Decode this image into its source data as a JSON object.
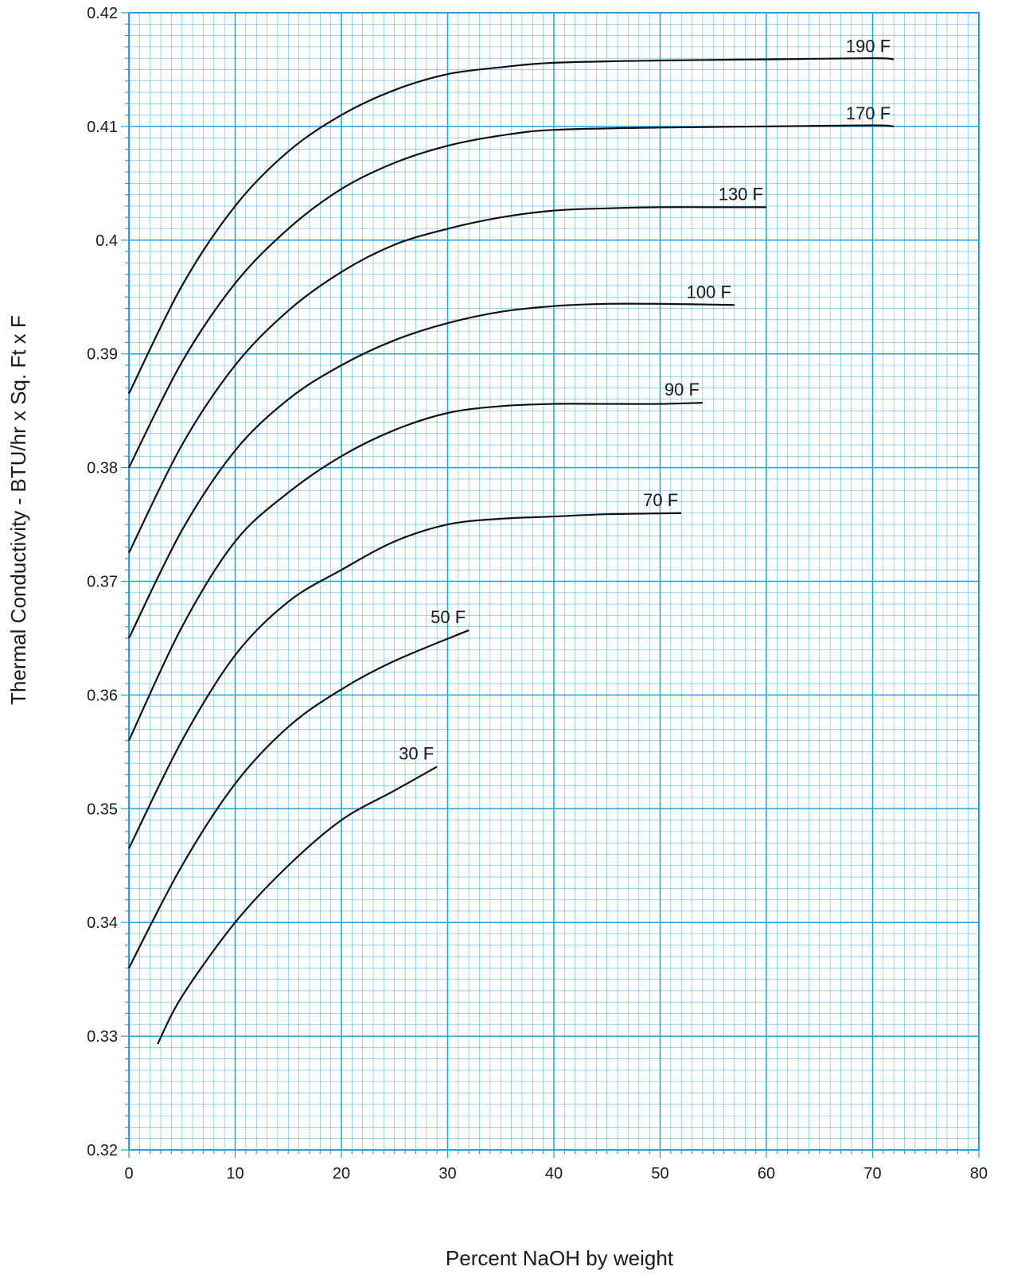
{
  "chart_data": {
    "type": "line",
    "title": "",
    "xlabel": "Percent NaOH by weight",
    "ylabel": "Thermal Conductivity - BTU/hr x Sq. Ft x F",
    "xlim": [
      0,
      80
    ],
    "ylim": [
      0.32,
      0.42
    ],
    "x_ticks": [
      "0",
      "10",
      "20",
      "30",
      "40",
      "50",
      "60",
      "70",
      "80"
    ],
    "y_ticks": [
      "0.32",
      "0.33",
      "0.34",
      "0.35",
      "0.36",
      "0.37",
      "0.38",
      "0.39",
      "0.4",
      "0.41",
      "0.42"
    ],
    "grid": true,
    "grid_color": "#1fa3e0",
    "line_color": "#111111",
    "series": [
      {
        "name": "190 F",
        "x": [
          0,
          5,
          10,
          15,
          20,
          25,
          30,
          35,
          40,
          50,
          60,
          70,
          72
        ],
        "values": [
          0.3865,
          0.396,
          0.403,
          0.4078,
          0.411,
          0.4132,
          0.4146,
          0.4152,
          0.4156,
          0.4158,
          0.4159,
          0.416,
          0.4159
        ]
      },
      {
        "name": "170 F",
        "x": [
          0,
          5,
          10,
          15,
          20,
          25,
          30,
          35,
          40,
          50,
          60,
          70,
          72
        ],
        "values": [
          0.38,
          0.3893,
          0.3962,
          0.401,
          0.4045,
          0.4068,
          0.4083,
          0.4092,
          0.4097,
          0.4099,
          0.41,
          0.4101,
          0.41
        ]
      },
      {
        "name": "130 F",
        "x": [
          0,
          5,
          10,
          15,
          20,
          25,
          30,
          35,
          40,
          45,
          50,
          55,
          60
        ],
        "values": [
          0.3725,
          0.382,
          0.389,
          0.3938,
          0.3972,
          0.3996,
          0.401,
          0.402,
          0.4026,
          0.4028,
          0.4029,
          0.4029,
          0.4029
        ]
      },
      {
        "name": "100 F",
        "x": [
          0,
          5,
          10,
          15,
          20,
          25,
          30,
          35,
          40,
          45,
          50,
          57
        ],
        "values": [
          0.365,
          0.3745,
          0.3815,
          0.386,
          0.389,
          0.3912,
          0.3927,
          0.3937,
          0.3942,
          0.3944,
          0.3944,
          0.3943
        ]
      },
      {
        "name": "90 F",
        "x": [
          0,
          5,
          10,
          15,
          20,
          25,
          30,
          35,
          40,
          45,
          50,
          54
        ],
        "values": [
          0.356,
          0.366,
          0.3735,
          0.3778,
          0.381,
          0.3833,
          0.3848,
          0.3854,
          0.3856,
          0.3856,
          0.3856,
          0.3857
        ]
      },
      {
        "name": "70 F",
        "x": [
          0,
          5,
          10,
          15,
          20,
          25,
          30,
          35,
          40,
          45,
          52
        ],
        "values": [
          0.3465,
          0.356,
          0.3635,
          0.3682,
          0.371,
          0.3735,
          0.375,
          0.3755,
          0.3757,
          0.3759,
          0.376
        ]
      },
      {
        "name": "50 F",
        "x": [
          0,
          5,
          10,
          15,
          20,
          25,
          32
        ],
        "values": [
          0.336,
          0.345,
          0.3522,
          0.3572,
          0.3605,
          0.363,
          0.3657
        ]
      },
      {
        "name": "30 F",
        "x": [
          2.7,
          5,
          10,
          15,
          20,
          25,
          29
        ],
        "values": [
          0.3293,
          0.3335,
          0.34,
          0.345,
          0.349,
          0.3516,
          0.3537
        ]
      }
    ]
  }
}
